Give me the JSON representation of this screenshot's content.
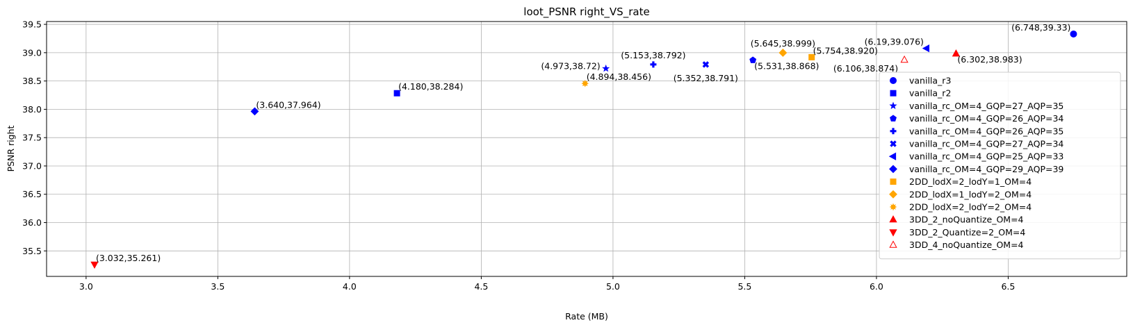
{
  "chart_data": {
    "type": "scatter",
    "title": "loot_PSNR right_VS_rate",
    "xlabel": "Rate (MB)",
    "ylabel": "PSNR right",
    "xlim": [
      2.85,
      6.95
    ],
    "ylim": [
      35.05,
      39.55
    ],
    "xticks": [
      3.0,
      3.5,
      4.0,
      4.5,
      5.0,
      5.5,
      6.0,
      6.5
    ],
    "xtick_labels": [
      "3.0",
      "3.5",
      "4.0",
      "4.5",
      "5.0",
      "5.5",
      "6.0",
      "6.5"
    ],
    "yticks": [
      35.5,
      36.0,
      36.5,
      37.0,
      37.5,
      38.0,
      38.5,
      39.0,
      39.5
    ],
    "ytick_labels": [
      "35.5",
      "36.0",
      "36.5",
      "37.0",
      "37.5",
      "38.0",
      "38.5",
      "39.0",
      "39.5"
    ],
    "grid": true,
    "legend_position": "right",
    "series": [
      {
        "name": "vanilla_r3",
        "marker": "circle",
        "color": "#0000ff",
        "filled": true,
        "x": 6.748,
        "y": 39.33,
        "label": "(6.748,39.33)",
        "label_pos": "top-left"
      },
      {
        "name": "vanilla_r2",
        "marker": "square",
        "color": "#0000ff",
        "filled": true,
        "x": 4.18,
        "y": 38.284,
        "label": "(4.180,38.284)",
        "label_pos": "top-right"
      },
      {
        "name": "vanilla_rc_OM=4_GQP=27_AQP=35",
        "marker": "star",
        "color": "#0000ff",
        "filled": true,
        "x": 4.973,
        "y": 38.72,
        "label": "(4.973,38.72)",
        "label_pos": "left"
      },
      {
        "name": "vanilla_rc_OM=4_GQP=26_AQP=34",
        "marker": "pentagon",
        "color": "#0000ff",
        "filled": true,
        "x": 5.531,
        "y": 38.868,
        "label": "(5.531,38.868)",
        "label_pos": "bottom-right"
      },
      {
        "name": "vanilla_rc_OM=4_GQP=26_AQP=35",
        "marker": "plus",
        "color": "#0000ff",
        "filled": true,
        "x": 5.153,
        "y": 38.792,
        "label": "(5.153,38.792)",
        "label_pos": "top-center"
      },
      {
        "name": "vanilla_rc_OM=4_GQP=27_AQP=34",
        "marker": "x",
        "color": "#0000ff",
        "filled": true,
        "x": 5.352,
        "y": 38.791,
        "label": "(5.352,38.791)",
        "label_pos": "bottom-center"
      },
      {
        "name": "vanilla_rc_OM=4_GQP=25_AQP=33",
        "marker": "triangle-left",
        "color": "#0000ff",
        "filled": true,
        "x": 6.19,
        "y": 39.076,
        "label": "(6.19,39.076)",
        "label_pos": "top-left"
      },
      {
        "name": "vanilla_rc_OM=4_GQP=29_AQP=39",
        "marker": "diamond",
        "color": "#0000ff",
        "filled": true,
        "x": 3.64,
        "y": 37.964,
        "label": "(3.640,37.964)",
        "label_pos": "top-right"
      },
      {
        "name": "2DD_lodX=2_lodY=1_OM=4",
        "marker": "square",
        "color": "#ffa500",
        "filled": true,
        "x": 5.754,
        "y": 38.92,
        "label": "(5.754,38.920)",
        "label_pos": "top-right"
      },
      {
        "name": "2DD_lodX=1_lodY=2_OM=4",
        "marker": "diamond",
        "color": "#ffa500",
        "filled": true,
        "x": 5.645,
        "y": 38.999,
        "label": "(5.645,38.999)",
        "label_pos": "top-center"
      },
      {
        "name": "2DD_lodX=2_lodY=2_OM=4",
        "marker": "sun",
        "color": "#ffa500",
        "filled": true,
        "x": 4.894,
        "y": 38.456,
        "label": "(4.894,38.456)",
        "label_pos": "top-right"
      },
      {
        "name": "3DD_2_noQuantize_OM=4",
        "marker": "triangle-up",
        "color": "#ff0000",
        "filled": true,
        "x": 6.302,
        "y": 38.983,
        "label": "(6.302,38.983)",
        "label_pos": "bottom-right"
      },
      {
        "name": "3DD_2_Quantize=2_OM=4",
        "marker": "triangle-down",
        "color": "#ff0000",
        "filled": true,
        "x": 3.032,
        "y": 35.261,
        "label": "(3.032,35.261)",
        "label_pos": "top-right"
      },
      {
        "name": "3DD_4_noQuantize_OM=4",
        "marker": "triangle-up",
        "color": "#ff0000",
        "filled": false,
        "x": 6.106,
        "y": 38.874,
        "label": "(6.106,38.874)",
        "label_pos": "bottom-left"
      }
    ]
  }
}
